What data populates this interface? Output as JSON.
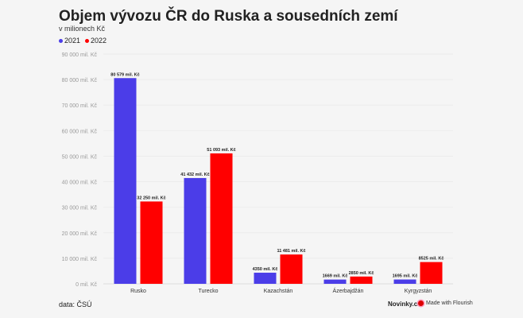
{
  "chart_data": {
    "type": "bar",
    "title": "Objem vývozu ČR do Ruska a sousedních zemí",
    "subtitle": "v milionech Kč",
    "categories": [
      "Rusko",
      "Turecko",
      "Kazachstán",
      "Ázerbajdžán",
      "Kyrgyzstán"
    ],
    "series": [
      {
        "name": "2021",
        "color": "#4b3de8",
        "values": [
          80579,
          41432,
          4350,
          1669,
          1695
        ],
        "labels": [
          "80 579 mil. Kč",
          "41 432 mil. Kč",
          "4350 mil. Kč",
          "1669 mil. Kč",
          "1695 mil. Kč"
        ]
      },
      {
        "name": "2022",
        "color": "#ff0000",
        "values": [
          32250,
          51093,
          11481,
          2850,
          8525
        ],
        "labels": [
          "32 250 mil. Kč",
          "51 093 mil. Kč",
          "11 481 mil. Kč",
          "2850 mil. Kč",
          "8525 mil. Kč"
        ]
      }
    ],
    "ylim": [
      0,
      90000
    ],
    "yticks": [
      0,
      10000,
      20000,
      30000,
      40000,
      50000,
      60000,
      70000,
      80000,
      90000
    ],
    "ytick_labels": [
      "0 mil. Kč",
      "10 000 mil. Kč",
      "20 000 mil. Kč",
      "30 000 mil. Kč",
      "40 000 mil. Kč",
      "50 000 mil. Kč",
      "60 000 mil. Kč",
      "70 000 mil. Kč",
      "80 000 mil. Kč",
      "90 000 mil. Kč"
    ],
    "legend_position": "top-left",
    "grid": true
  },
  "footer": {
    "source": "data: ČSÚ",
    "brand": "Novinky.cz",
    "flourish": "Made with Flourish"
  }
}
